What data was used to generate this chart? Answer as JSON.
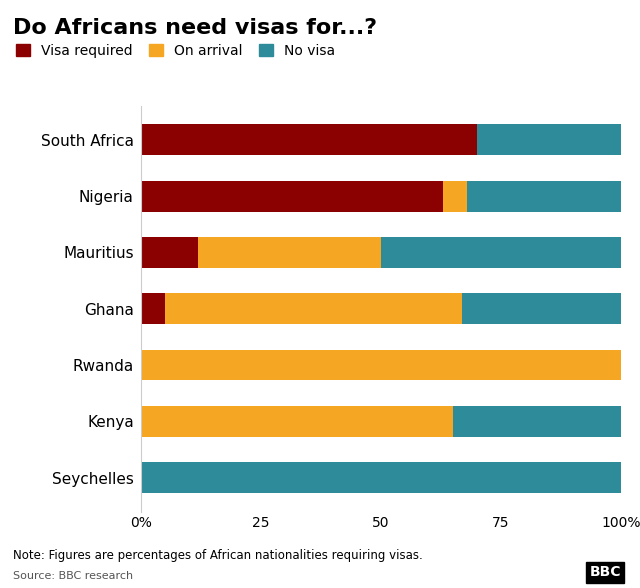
{
  "title": "Do Africans need visas for...?",
  "categories": [
    "South Africa",
    "Nigeria",
    "Mauritius",
    "Ghana",
    "Rwanda",
    "Kenya",
    "Seychelles"
  ],
  "visa_required": [
    70,
    63,
    12,
    5,
    0,
    0,
    0
  ],
  "on_arrival": [
    0,
    5,
    38,
    62,
    100,
    65,
    0
  ],
  "no_visa": [
    30,
    32,
    50,
    33,
    0,
    35,
    100
  ],
  "color_visa_required": "#8B0000",
  "color_on_arrival": "#F5A623",
  "color_no_visa": "#2E8B9A",
  "legend_labels": [
    "Visa required",
    "On arrival",
    "No visa"
  ],
  "note": "Note: Figures are percentages of African nationalities requiring visas.",
  "source": "Source: BBC research",
  "bbc_label": "BBC",
  "background_color": "#FFFFFF",
  "bar_height": 0.55,
  "xtick_labels": [
    "0%",
    "25",
    "50",
    "75",
    "100%"
  ],
  "xtick_values": [
    0,
    25,
    50,
    75,
    100
  ]
}
